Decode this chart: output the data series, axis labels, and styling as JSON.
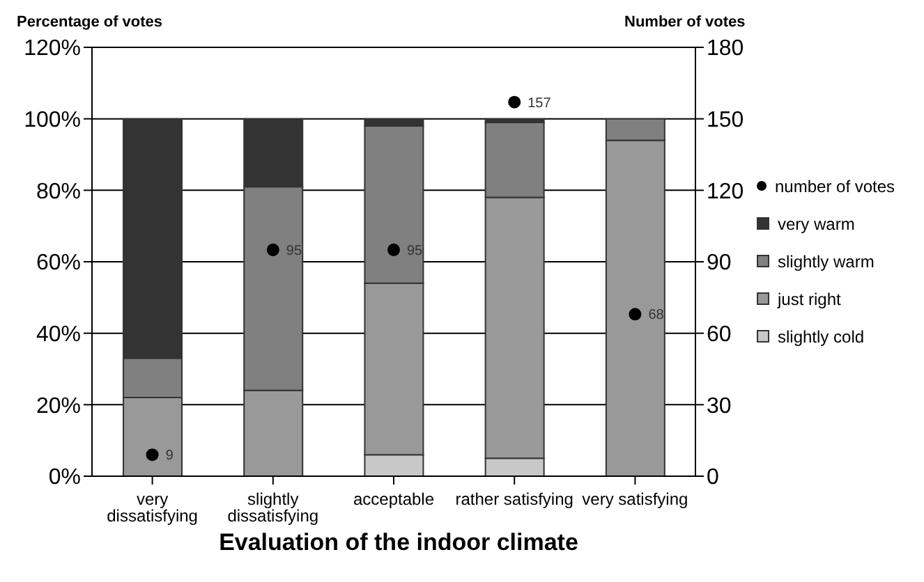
{
  "chart_data": {
    "type": "bar",
    "stacked": true,
    "xlabel": "Evaluation of the indoor climate",
    "ylabel": "Percentage of votes",
    "y2label": "Number of votes",
    "categories": [
      "very dissatisfying",
      "slightly dissatisfying",
      "acceptable",
      "rather satisfying",
      "very satisfying"
    ],
    "series": [
      {
        "name": "slightly cold",
        "color": "#c8c8c8",
        "values": [
          0,
          0,
          6,
          5,
          0
        ]
      },
      {
        "name": "just right",
        "color": "#999999",
        "values": [
          22,
          24,
          48,
          73,
          94
        ]
      },
      {
        "name": "slightly warm",
        "color": "#808080",
        "values": [
          11,
          57,
          44,
          21,
          6
        ]
      },
      {
        "name": "very warm",
        "color": "#333333",
        "values": [
          67,
          19,
          2,
          1,
          0
        ]
      },
      {
        "name": "number of votes",
        "type": "scatter",
        "axis": "y2",
        "color": "#000000",
        "marker": "circle",
        "data_labels": true,
        "values": [
          9,
          95,
          95,
          157,
          68
        ]
      }
    ],
    "ylim": [
      0,
      120
    ],
    "yticks": [
      {
        "value": 0,
        "label": "0%"
      },
      {
        "value": 20,
        "label": "20%"
      },
      {
        "value": 40,
        "label": "40%"
      },
      {
        "value": 60,
        "label": "60%"
      },
      {
        "value": 80,
        "label": "80%"
      },
      {
        "value": 100,
        "label": "100%"
      },
      {
        "value": 120,
        "label": "120%"
      }
    ],
    "y2lim": [
      0,
      180
    ],
    "y2ticks": [
      0,
      30,
      60,
      90,
      120,
      150,
      180
    ],
    "grid": "y",
    "legend": "right"
  }
}
